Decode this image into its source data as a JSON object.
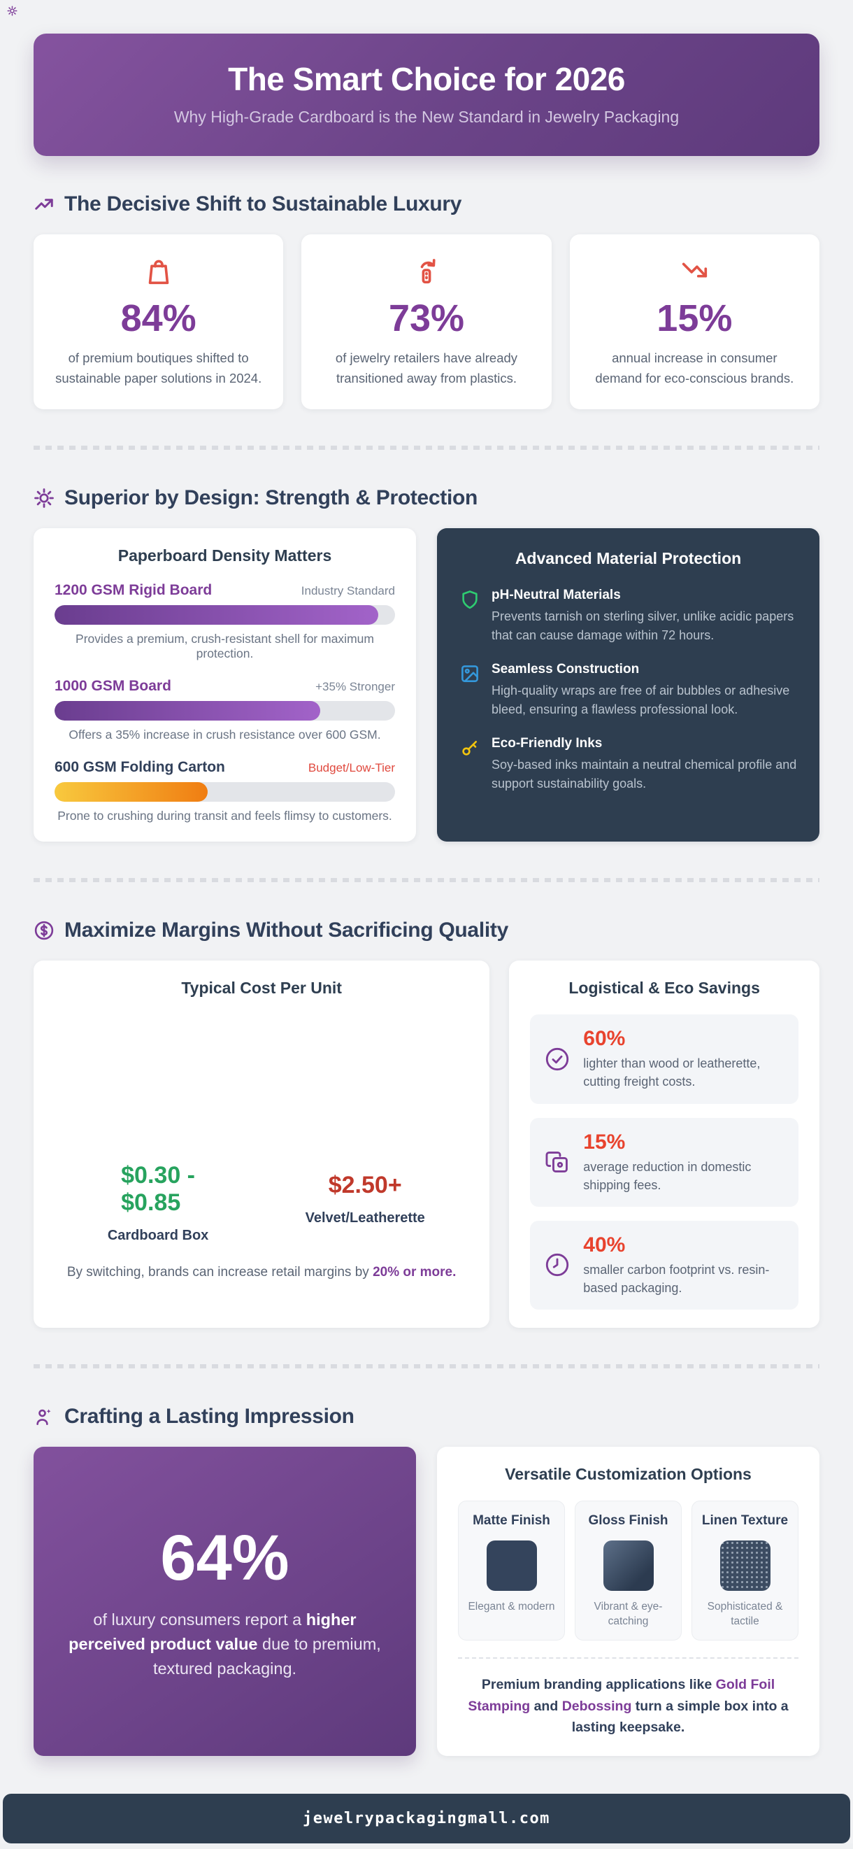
{
  "header": {
    "title": "The Smart Choice for 2026",
    "subtitle": "Why High-Grade Cardboard is the New Standard in Jewelry Packaging"
  },
  "shift": {
    "heading": "The Decisive Shift to Sustainable Luxury",
    "stats": [
      {
        "icon": "shopping-bag-icon",
        "value": "84%",
        "text": "of premium boutiques shifted to sustainable paper solutions in 2024."
      },
      {
        "icon": "recycle-icon",
        "value": "73%",
        "text": "of jewelry retailers have already transitioned away from plastics."
      },
      {
        "icon": "trending-down-icon",
        "value": "15%",
        "text": "annual increase in consumer demand for eco-conscious brands."
      }
    ]
  },
  "design": {
    "heading": "Superior by Design: Strength & Protection",
    "density": {
      "title": "Paperboard Density Matters",
      "bars": [
        {
          "label": "1200 GSM Rigid Board",
          "tag": "Industry Standard",
          "percent": 95,
          "caption": "Provides a premium, crush-resistant shell for maximum protection."
        },
        {
          "label": "1000 GSM Board",
          "tag": "+35% Stronger",
          "percent": 78,
          "caption": "Offers a 35% increase in crush resistance over 600 GSM."
        },
        {
          "label": "600 GSM Folding Carton",
          "tag": "Budget/Low-Tier",
          "percent": 45,
          "caption": "Prone to crushing during transit and feels flimsy to customers."
        }
      ]
    },
    "protection": {
      "title": "Advanced Material Protection",
      "items": [
        {
          "icon": "shield-icon",
          "title": "pH-Neutral Materials",
          "text": "Prevents tarnish on sterling silver, unlike acidic papers that can cause damage within 72 hours."
        },
        {
          "icon": "image-icon",
          "title": "Seamless Construction",
          "text": "High-quality wraps are free of air bubbles or adhesive bleed, ensuring a flawless professional look."
        },
        {
          "icon": "key-icon",
          "title": "Eco-Friendly Inks",
          "text": "Soy-based inks maintain a neutral chemical profile and support sustainability goals."
        }
      ]
    }
  },
  "margins": {
    "heading": "Maximize Margins Without Sacrificing Quality",
    "cost": {
      "title": "Typical Cost Per Unit",
      "cardboard_price": "$0.30 -\n$0.85",
      "cardboard_label": "Cardboard Box",
      "velvet_price": "$2.50+",
      "velvet_label": "Velvet/Leatherette",
      "note_prefix": "By switching, brands can increase retail margins by ",
      "note_bold": "20% or more."
    },
    "savings": {
      "title": "Logistical & Eco Savings",
      "items": [
        {
          "icon": "check-circle-icon",
          "value": "60%",
          "text": "lighter than wood or leatherette, cutting freight costs."
        },
        {
          "icon": "copy-icon",
          "value": "15%",
          "text": "average reduction in domestic shipping fees."
        },
        {
          "icon": "clock-icon",
          "value": "40%",
          "text": "smaller carbon footprint vs. resin-based packaging."
        }
      ]
    }
  },
  "impression": {
    "heading": "Crafting a Lasting Impression",
    "stat": {
      "value": "64%",
      "text_1": "of luxury consumers report a ",
      "text_bold": "higher perceived product value",
      "text_2": " due to premium, textured packaging."
    },
    "customization": {
      "title": "Versatile Customization Options",
      "options": [
        {
          "name": "Matte Finish",
          "desc": "Elegant & modern"
        },
        {
          "name": "Gloss Finish",
          "desc": "Vibrant & eye-catching"
        },
        {
          "name": "Linen Texture",
          "desc": "Sophisticated & tactile"
        }
      ],
      "note_1": "Premium branding applications like ",
      "note_accent_1": "Gold Foil Stamping",
      "note_2": " and ",
      "note_accent_2": "Debossing",
      "note_3": " turn a simple box into a lasting keepsake."
    }
  },
  "footer": {
    "domain": "jewelrypackagingmall.com"
  },
  "colors": {
    "purple": "#7d3c98",
    "red_accent": "#e25345",
    "green": "#27a35e",
    "price_red": "#c0392b",
    "navy": "#2e3e50",
    "header_gradient_start": "#85539f",
    "header_gradient_end": "#5e3a7c"
  }
}
